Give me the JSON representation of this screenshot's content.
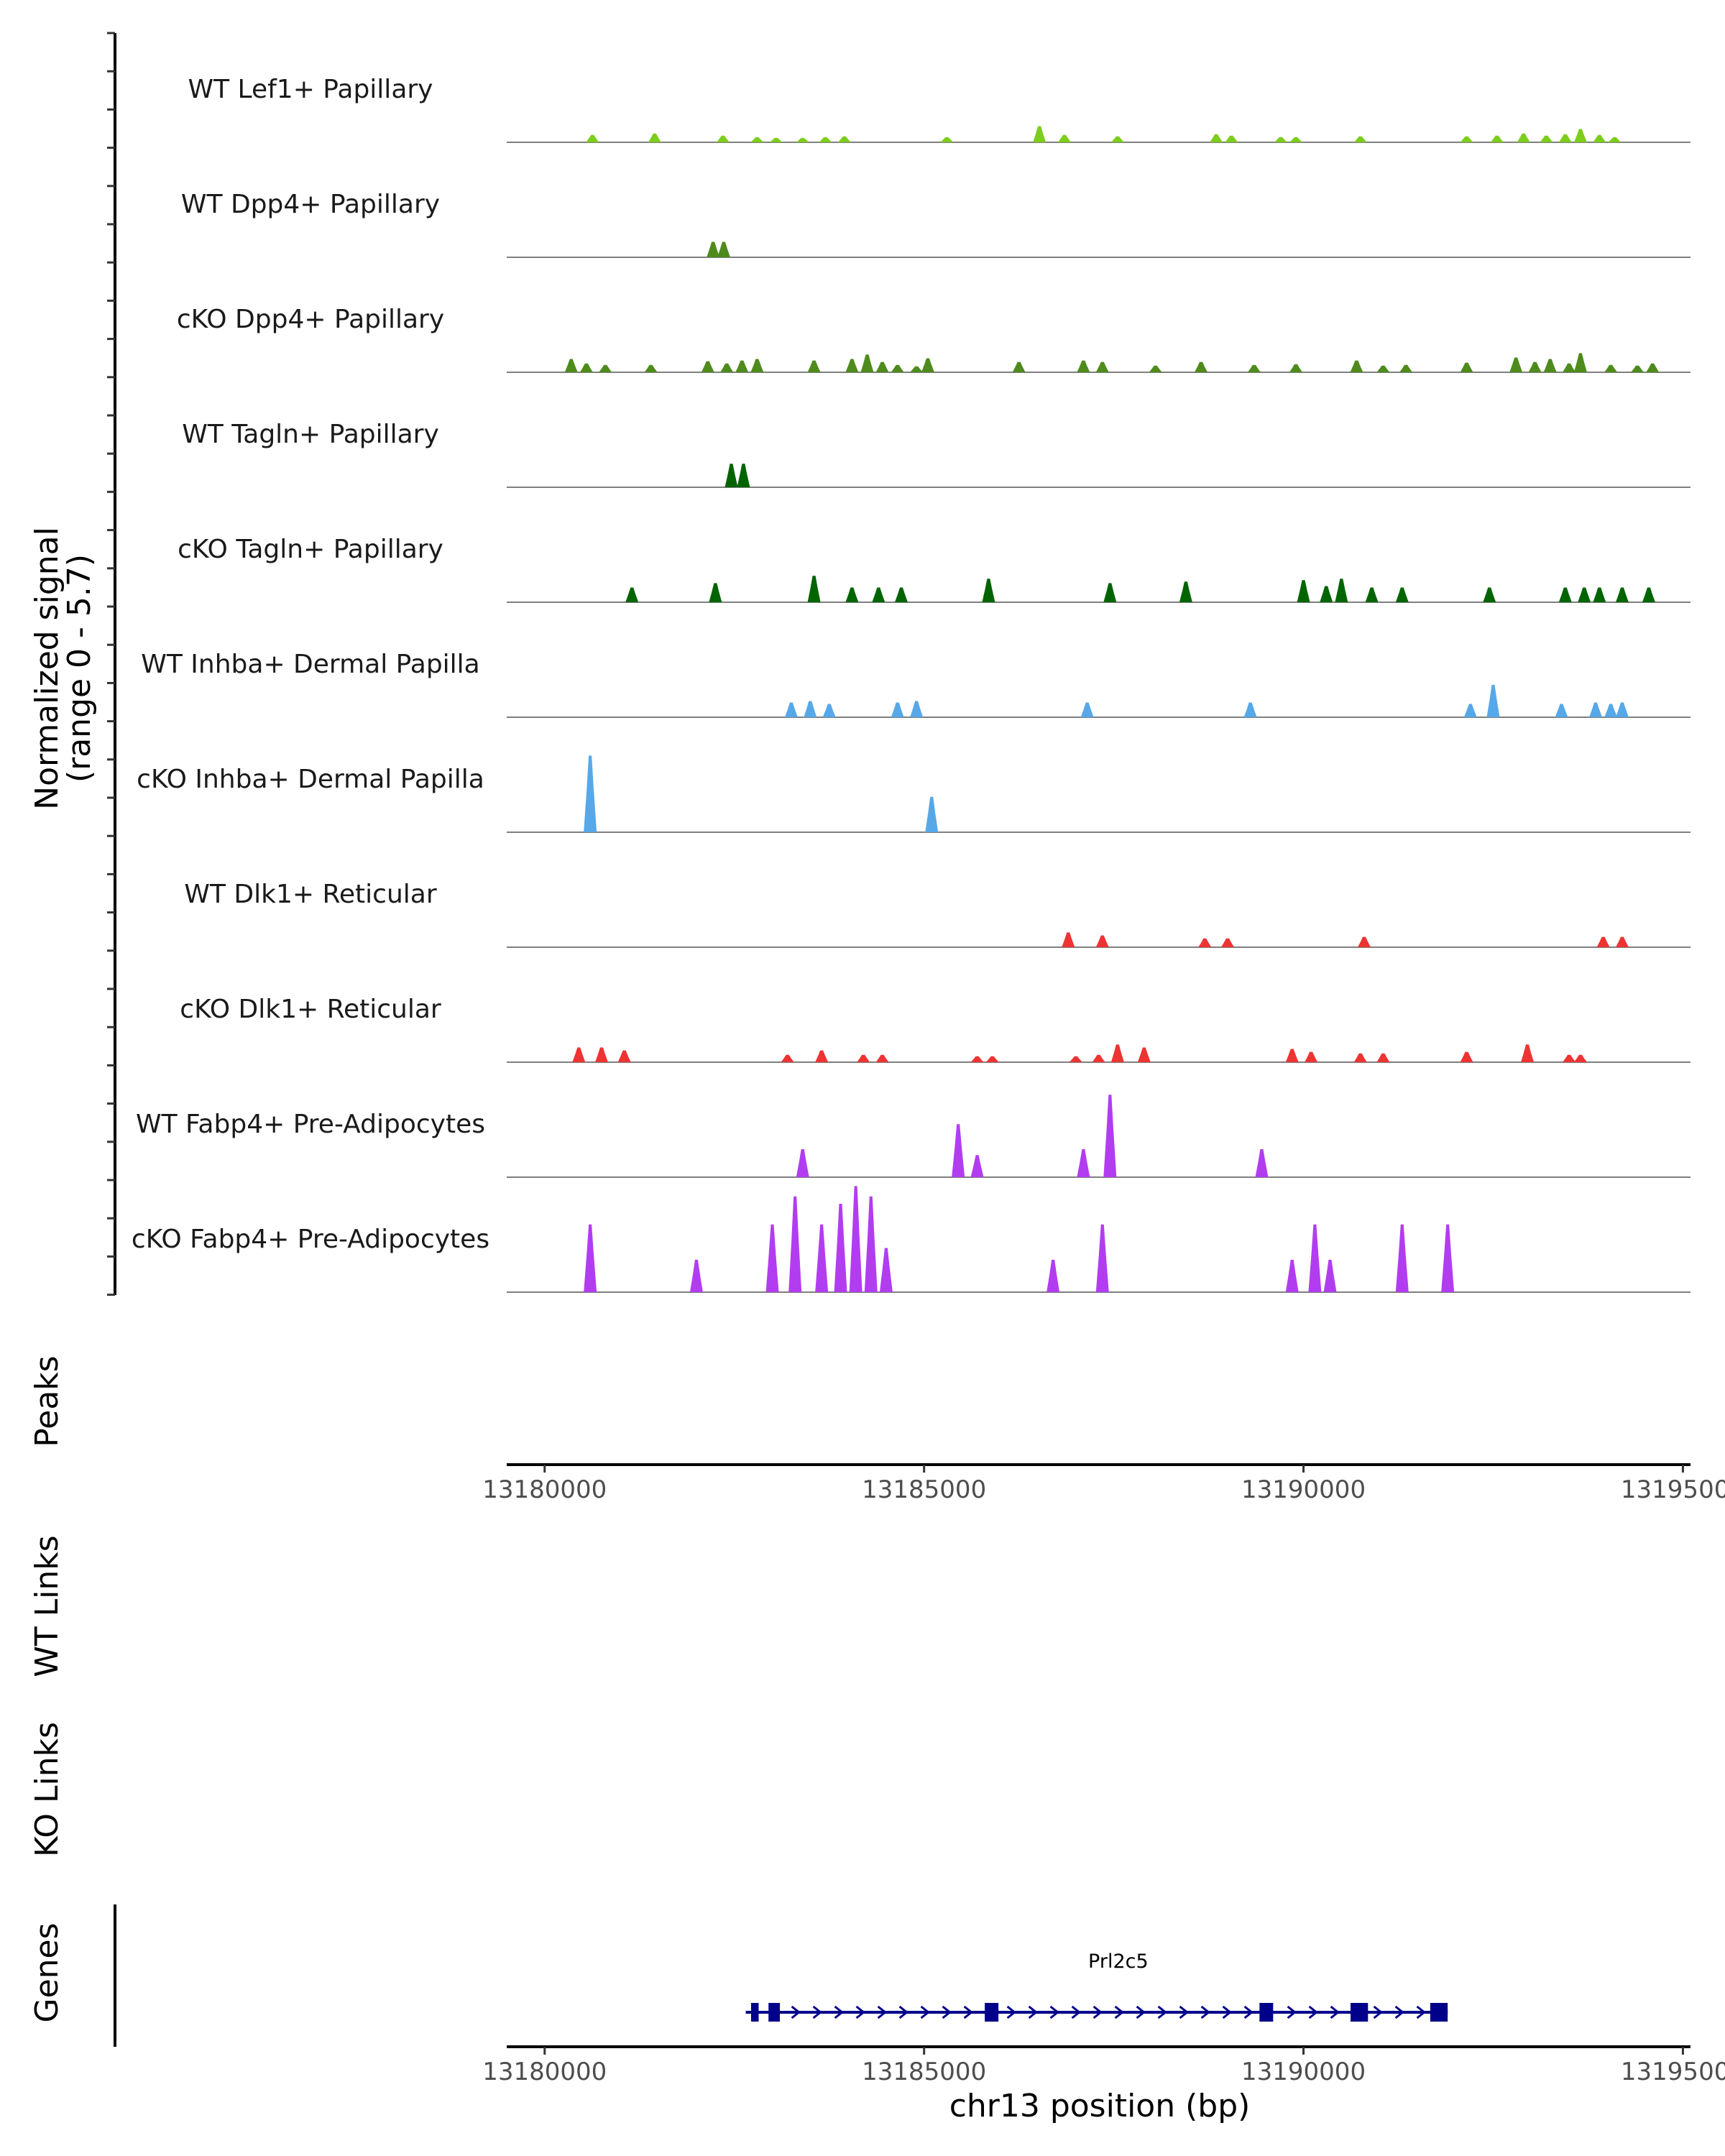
{
  "chart_data": {
    "type": "area",
    "title": "",
    "region": "chr13",
    "y_axis_label": [
      "Normalized signal",
      "(range 0 - 5.7)"
    ],
    "y_range": [
      0,
      5.7
    ],
    "xlabel": "chr13 position (bp)",
    "xlim": [
      13179500,
      13195100
    ],
    "x_ticks": [
      13180000,
      13185000,
      13190000,
      13195000
    ],
    "x_tick_labels": [
      "13180000",
      "13185000",
      "13190000",
      "13195000"
    ],
    "tracks": [
      {
        "label": "WT Lef1+ Papillary",
        "color": "#7CCD1C",
        "peaks": [
          [
            13180630,
            0.5
          ],
          [
            13181450,
            0.6
          ],
          [
            13182350,
            0.45
          ],
          [
            13182800,
            0.35
          ],
          [
            13183050,
            0.3
          ],
          [
            13183400,
            0.3
          ],
          [
            13183700,
            0.35
          ],
          [
            13183950,
            0.4
          ],
          [
            13185300,
            0.35
          ],
          [
            13186520,
            1.1
          ],
          [
            13186850,
            0.5
          ],
          [
            13187550,
            0.4
          ],
          [
            13188850,
            0.55
          ],
          [
            13189050,
            0.45
          ],
          [
            13189700,
            0.35
          ],
          [
            13189900,
            0.35
          ],
          [
            13190750,
            0.4
          ],
          [
            13192150,
            0.4
          ],
          [
            13192550,
            0.45
          ],
          [
            13192900,
            0.6
          ],
          [
            13193200,
            0.45
          ],
          [
            13193450,
            0.55
          ],
          [
            13193650,
            0.9
          ],
          [
            13193900,
            0.5
          ],
          [
            13194100,
            0.35
          ]
        ]
      },
      {
        "label": "WT Dpp4+ Papillary",
        "color": "#4E8B1C",
        "peaks": [
          [
            13182220,
            1.05
          ],
          [
            13182360,
            1.05
          ]
        ]
      },
      {
        "label": "cKO Dpp4+ Papillary",
        "color": "#4E8B1C",
        "peaks": [
          [
            13180350,
            0.9
          ],
          [
            13180550,
            0.6
          ],
          [
            13180800,
            0.5
          ],
          [
            13181400,
            0.5
          ],
          [
            13182150,
            0.75
          ],
          [
            13182400,
            0.6
          ],
          [
            13182600,
            0.8
          ],
          [
            13182800,
            0.9
          ],
          [
            13183550,
            0.8
          ],
          [
            13184050,
            0.9
          ],
          [
            13184250,
            1.2
          ],
          [
            13184450,
            0.7
          ],
          [
            13184650,
            0.5
          ],
          [
            13184900,
            0.4
          ],
          [
            13185050,
            0.95
          ],
          [
            13186250,
            0.7
          ],
          [
            13187100,
            0.8
          ],
          [
            13187350,
            0.7
          ],
          [
            13188050,
            0.45
          ],
          [
            13188650,
            0.7
          ],
          [
            13189350,
            0.5
          ],
          [
            13189900,
            0.55
          ],
          [
            13190700,
            0.8
          ],
          [
            13191050,
            0.45
          ],
          [
            13191350,
            0.5
          ],
          [
            13192150,
            0.65
          ],
          [
            13192800,
            1.0
          ],
          [
            13193050,
            0.7
          ],
          [
            13193250,
            0.9
          ],
          [
            13193500,
            0.6
          ],
          [
            13193650,
            1.3
          ],
          [
            13194050,
            0.5
          ],
          [
            13194400,
            0.45
          ],
          [
            13194600,
            0.6
          ]
        ]
      },
      {
        "label": "WT Tagln+ Papillary",
        "color": "#006400",
        "peaks": [
          [
            13182460,
            1.6
          ],
          [
            13182620,
            1.6
          ]
        ]
      },
      {
        "label": "cKO Tagln+ Papillary",
        "color": "#006400",
        "peaks": [
          [
            13181150,
            1.0
          ],
          [
            13182250,
            1.3
          ],
          [
            13183550,
            1.8
          ],
          [
            13184050,
            1.0
          ],
          [
            13184400,
            1.0
          ],
          [
            13184700,
            1.0
          ],
          [
            13185850,
            1.6
          ],
          [
            13187450,
            1.3
          ],
          [
            13188450,
            1.4
          ],
          [
            13190000,
            1.5
          ],
          [
            13190300,
            1.1
          ],
          [
            13190500,
            1.6
          ],
          [
            13190900,
            1.0
          ],
          [
            13191300,
            1.0
          ],
          [
            13192450,
            1.0
          ],
          [
            13193450,
            1.0
          ],
          [
            13193700,
            1.0
          ],
          [
            13193900,
            1.0
          ],
          [
            13194200,
            1.0
          ],
          [
            13194550,
            1.0
          ]
        ]
      },
      {
        "label": "WT Inhba+ Dermal Papilla",
        "color": "#56A8E8",
        "peaks": [
          [
            13183250,
            1.0
          ],
          [
            13183500,
            1.1
          ],
          [
            13183750,
            0.9
          ],
          [
            13184650,
            1.0
          ],
          [
            13184900,
            1.1
          ],
          [
            13187150,
            1.0
          ],
          [
            13189300,
            1.0
          ],
          [
            13192200,
            0.9
          ],
          [
            13192500,
            2.2
          ],
          [
            13193400,
            0.9
          ],
          [
            13193850,
            1.0
          ],
          [
            13194050,
            0.9
          ],
          [
            13194200,
            1.0
          ]
        ]
      },
      {
        "label": "cKO Inhba+ Dermal Papilla",
        "color": "#56A8E8",
        "peaks": [
          [
            13180600,
            5.2
          ],
          [
            13185100,
            2.4
          ]
        ]
      },
      {
        "label": "WT Dlk1+ Reticular",
        "color": "#EE3333",
        "peaks": [
          [
            13186900,
            1.0
          ],
          [
            13187350,
            0.8
          ],
          [
            13188700,
            0.6
          ],
          [
            13189000,
            0.6
          ],
          [
            13190800,
            0.7
          ],
          [
            13193950,
            0.7
          ],
          [
            13194200,
            0.7
          ]
        ]
      },
      {
        "label": "cKO Dlk1+ Reticular",
        "color": "#EE3333",
        "peaks": [
          [
            13180450,
            1.0
          ],
          [
            13180750,
            1.0
          ],
          [
            13181050,
            0.8
          ],
          [
            13183200,
            0.5
          ],
          [
            13183650,
            0.8
          ],
          [
            13184200,
            0.5
          ],
          [
            13184450,
            0.5
          ],
          [
            13185700,
            0.4
          ],
          [
            13185900,
            0.4
          ],
          [
            13187000,
            0.4
          ],
          [
            13187300,
            0.5
          ],
          [
            13187550,
            1.2
          ],
          [
            13187900,
            1.0
          ],
          [
            13189850,
            0.9
          ],
          [
            13190100,
            0.7
          ],
          [
            13190750,
            0.6
          ],
          [
            13191050,
            0.6
          ],
          [
            13192150,
            0.7
          ],
          [
            13192950,
            1.2
          ],
          [
            13193500,
            0.5
          ],
          [
            13193650,
            0.5
          ]
        ]
      },
      {
        "label": "WT Fabp4+ Pre-Adipocytes",
        "color": "#B23DF0",
        "peaks": [
          [
            13183400,
            1.9
          ],
          [
            13185450,
            3.6
          ],
          [
            13185700,
            1.5
          ],
          [
            13187100,
            1.9
          ],
          [
            13187450,
            5.6
          ],
          [
            13189450,
            1.9
          ]
        ]
      },
      {
        "label": "cKO Fabp4+ Pre-Adipocytes",
        "color": "#B23DF0",
        "peaks": [
          [
            13180600,
            4.6
          ],
          [
            13182000,
            2.2
          ],
          [
            13183000,
            4.6
          ],
          [
            13183300,
            6.5
          ],
          [
            13183650,
            4.6
          ],
          [
            13183900,
            6.0
          ],
          [
            13184100,
            7.2
          ],
          [
            13184300,
            6.5
          ],
          [
            13184500,
            3.0
          ],
          [
            13186700,
            2.2
          ],
          [
            13187350,
            4.6
          ],
          [
            13189850,
            2.2
          ],
          [
            13190150,
            4.6
          ],
          [
            13190350,
            2.2
          ],
          [
            13191300,
            4.6
          ],
          [
            13191900,
            4.6
          ]
        ]
      }
    ],
    "panels": [
      "Peaks",
      "WT Links",
      "KO Links",
      "Genes"
    ],
    "genes": [
      {
        "name": "Prl2c5",
        "start": 13182650,
        "end": 13191900,
        "strand": "+",
        "exons": [
          [
            13182720,
            13182820
          ],
          [
            13182950,
            13183100
          ],
          [
            13185800,
            13185980
          ],
          [
            13189420,
            13189600
          ],
          [
            13190620,
            13190850
          ],
          [
            13191670,
            13191900
          ]
        ]
      }
    ]
  }
}
